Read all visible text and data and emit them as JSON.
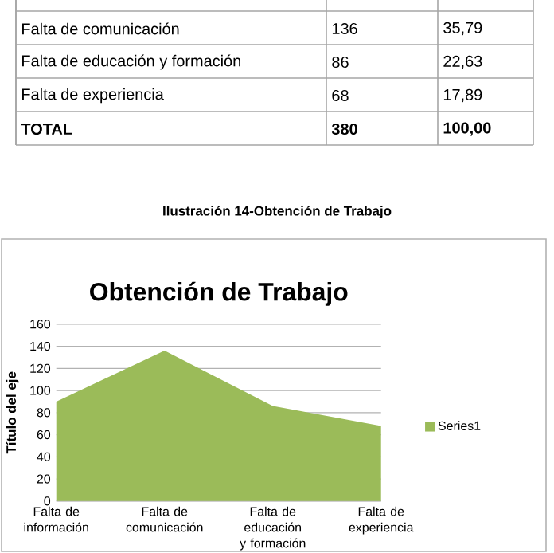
{
  "chart_data": {
    "type": "area",
    "title": "Obtención de Trabajo",
    "ylabel": "Título del eje",
    "categories": [
      "Falta de información",
      "Falta de comunicación",
      "Falta de educación y formación",
      "Falta de experiencia"
    ],
    "series": [
      {
        "name": "Series1",
        "color": "#9bbb59",
        "values": [
          90,
          136,
          86,
          68
        ]
      }
    ],
    "ylim": [
      0,
      160
    ],
    "yticks": [
      0,
      20,
      40,
      60,
      80,
      100,
      120,
      140,
      160
    ],
    "grid": "y",
    "legend": "right",
    "annotations": [
      "Falta de comunicación",
      "136",
      "35,79",
      "Falta de educación y formación",
      "86",
      "22,63",
      "Falta de experiencia",
      "68",
      "17,89",
      "TOTAL",
      "380",
      "100,00",
      "Ilustración 14-Obtención de Trabajo"
    ]
  }
}
